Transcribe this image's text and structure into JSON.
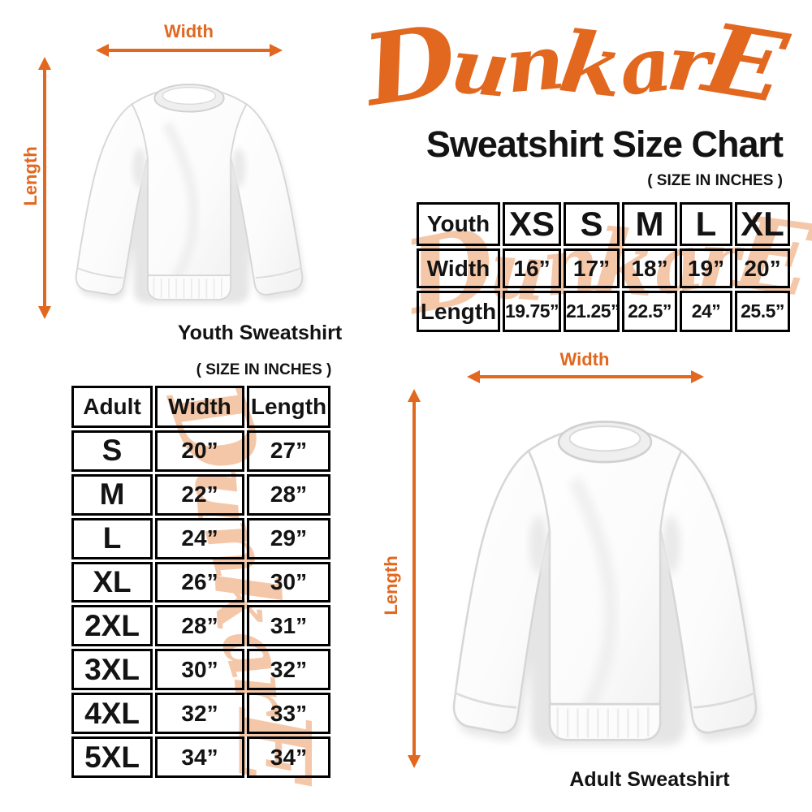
{
  "brand": {
    "logo_text": "DunkarE"
  },
  "colors": {
    "accent_orange": "#E2671F",
    "watermark_peach": "#F5C7A9",
    "text_black": "#131313"
  },
  "header": {
    "title": "Sweatshirt Size Chart",
    "size_note": "( SIZE IN INCHES )"
  },
  "youth_diagram": {
    "width_label": "Width",
    "length_label": "Length",
    "caption": "Youth Sweatshirt"
  },
  "youth_table": {
    "corner_label": "Youth",
    "size_headers": [
      "XS",
      "S",
      "M",
      "L",
      "XL"
    ],
    "rows": [
      {
        "label": "Width",
        "values": [
          "16”",
          "17”",
          "18”",
          "19”",
          "20”"
        ]
      },
      {
        "label": "Length",
        "values": [
          "19.75”",
          "21.25”",
          "22.5”",
          "24”",
          "25.5”"
        ]
      }
    ]
  },
  "adult_section": {
    "size_note": "( SIZE IN INCHES )"
  },
  "adult_table": {
    "headers": [
      "Adult",
      "Width",
      "Length"
    ],
    "rows": [
      {
        "size": "S",
        "width": "20”",
        "length": "27”"
      },
      {
        "size": "M",
        "width": "22”",
        "length": "28”"
      },
      {
        "size": "L",
        "width": "24”",
        "length": "29”"
      },
      {
        "size": "XL",
        "width": "26”",
        "length": "30”"
      },
      {
        "size": "2XL",
        "width": "28”",
        "length": "31”"
      },
      {
        "size": "3XL",
        "width": "30”",
        "length": "32”"
      },
      {
        "size": "4XL",
        "width": "32”",
        "length": "33”"
      },
      {
        "size": "5XL",
        "width": "34”",
        "length": "34”"
      }
    ]
  },
  "adult_diagram": {
    "width_label": "Width",
    "length_label": "Length",
    "caption": "Adult Sweatshirt"
  }
}
